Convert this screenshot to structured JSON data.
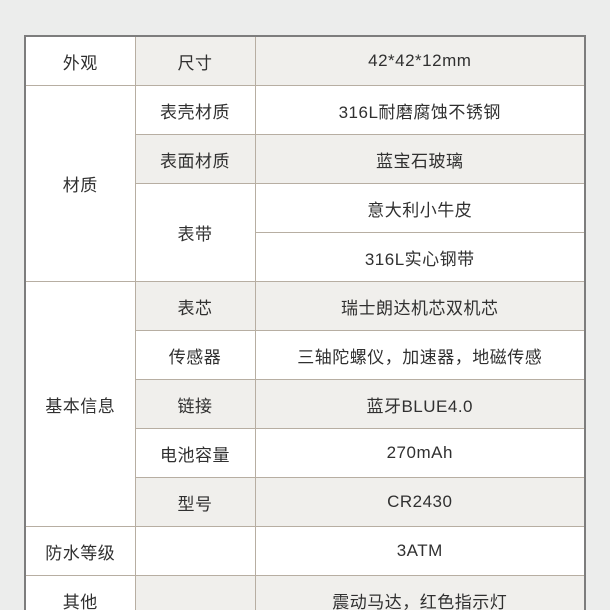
{
  "colors": {
    "page_background": "#ecedec",
    "outer_border": "#7d7d7d",
    "inner_border": "#b7aea2",
    "shaded_row_background": "#f0efec",
    "cell_background": "#ffffff",
    "text": "#303030"
  },
  "table": {
    "groups": [
      {
        "label": "外观",
        "span": 1
      },
      {
        "label": "材质",
        "span": 4
      },
      {
        "label": "基本信息",
        "span": 5
      },
      {
        "label": "防水等级",
        "span": 1
      },
      {
        "label": "其他",
        "span": 1
      }
    ],
    "rows": [
      {
        "param": "尺寸",
        "value": "42*42*12mm"
      },
      {
        "param": "表壳材质",
        "value": "316L耐磨腐蚀不锈钢"
      },
      {
        "param": "表面材质",
        "value": "蓝宝石玻璃"
      },
      {
        "param": "表带",
        "value": "意大利小牛皮"
      },
      {
        "param": "",
        "value": "316L实心钢带"
      },
      {
        "param": "表芯",
        "value": "瑞士朗达机芯双机芯"
      },
      {
        "param": "传感器",
        "value": "三轴陀螺仪，加速器，地磁传感"
      },
      {
        "param": "链接",
        "value": "蓝牙BLUE4.0"
      },
      {
        "param": "电池容量",
        "value": "270mAh"
      },
      {
        "param": "型号",
        "value": "CR2430"
      },
      {
        "param": "",
        "value": "3ATM"
      },
      {
        "param": "",
        "value": "震动马达，红色指示灯"
      }
    ]
  }
}
